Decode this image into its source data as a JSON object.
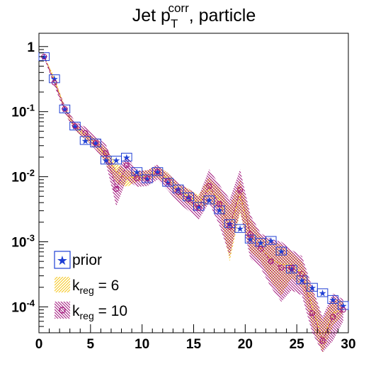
{
  "chart_data": {
    "type": "line",
    "title": {
      "main": "Jet p",
      "sub": "T",
      "sup": "corr",
      "rest": ", particle"
    },
    "xlabel": "",
    "ylabel": "",
    "xlim": [
      0,
      30
    ],
    "ylim": [
      4e-05,
      1.6
    ],
    "yscale": "log",
    "x_ticks": [
      "0",
      "5",
      "10",
      "15",
      "20",
      "25",
      "30"
    ],
    "y_ticks": [
      {
        "base": "1",
        "exp": ""
      },
      {
        "base": "10",
        "exp": "-1"
      },
      {
        "base": "10",
        "exp": "-2"
      },
      {
        "base": "10",
        "exp": "-3"
      },
      {
        "base": "10",
        "exp": "-4"
      }
    ],
    "legend_position": "bottom-left",
    "colors": {
      "prior": "#1f3fd4",
      "kreg6": "#f5c518",
      "kreg10": "#a0147a"
    },
    "x": [
      0.5,
      1.5,
      2.5,
      3.5,
      4.5,
      5.5,
      6.5,
      7.5,
      8.5,
      9.5,
      10.5,
      11.5,
      12.5,
      13.5,
      14.5,
      15.5,
      16.5,
      17.5,
      18.5,
      19.5,
      20.5,
      21.5,
      22.5,
      23.5,
      24.5,
      25.5,
      26.5,
      27.5,
      28.5,
      29.5
    ],
    "series": [
      {
        "name": "prior",
        "values": [
          0.7,
          0.32,
          0.11,
          0.06,
          0.036,
          0.033,
          0.018,
          0.018,
          0.02,
          0.012,
          0.0093,
          0.012,
          0.0082,
          0.0065,
          0.0049,
          0.0035,
          0.0044,
          0.0031,
          0.0019,
          0.0016,
          0.0011,
          0.00098,
          0.00105,
          0.00072,
          0.00038,
          0.00026,
          0.0002,
          0.000165,
          0.00013,
          0.000105
        ]
      },
      {
        "name": "k",
        "sub": "reg",
        "label_value": " = 6",
        "values": [
          0.7,
          0.31,
          0.11,
          0.058,
          0.043,
          0.033,
          0.021,
          0.012,
          0.0095,
          0.01,
          0.0105,
          0.012,
          0.0093,
          0.0061,
          0.005,
          0.004,
          0.0065,
          0.0045,
          0.0016,
          0.0052,
          0.0013,
          0.0008,
          0.00055,
          0.00045,
          0.00045,
          0.00033,
          0.0001,
          3e-05,
          8e-05,
          9.5e-05
        ],
        "band_low": [
          0.68,
          0.28,
          0.1,
          0.052,
          0.037,
          0.028,
          0.016,
          0.008,
          0.007,
          0.0084,
          0.0088,
          0.0098,
          0.0075,
          0.0048,
          0.0038,
          0.003,
          0.004,
          0.003,
          0.0005,
          0.0028,
          0.0007,
          0.0005,
          0.00025,
          0.00015,
          0.00028,
          0.0002,
          5e-05,
          2e-05,
          5e-05,
          8e-05
        ],
        "band_high": [
          0.72,
          0.34,
          0.12,
          0.064,
          0.05,
          0.038,
          0.027,
          0.016,
          0.0125,
          0.012,
          0.0125,
          0.0145,
          0.0115,
          0.0078,
          0.0065,
          0.0052,
          0.01,
          0.0065,
          0.0035,
          0.009,
          0.0023,
          0.0012,
          0.001,
          0.0009,
          0.0007,
          0.0005,
          0.00018,
          6e-05,
          0.00014,
          0.00012
        ]
      },
      {
        "name": "k",
        "sub": "reg",
        "label_value": " = 10",
        "values": [
          0.7,
          0.28,
          0.11,
          0.06,
          0.047,
          0.033,
          0.023,
          0.0065,
          0.015,
          0.0095,
          0.0095,
          0.012,
          0.0085,
          0.0058,
          0.0045,
          0.0033,
          0.0072,
          0.0038,
          0.0017,
          0.0063,
          0.0013,
          0.00078,
          0.0005,
          0.0004,
          0.0004,
          0.00032,
          8e-05,
          3e-05,
          7e-05,
          9e-05
        ],
        "band_low": [
          0.67,
          0.25,
          0.095,
          0.05,
          0.038,
          0.026,
          0.016,
          0.0035,
          0.009,
          0.007,
          0.0072,
          0.009,
          0.0062,
          0.004,
          0.003,
          0.0022,
          0.004,
          0.0018,
          0.0006,
          0.003,
          0.00055,
          0.0004,
          0.0002,
          0.00012,
          0.00018,
          0.00015,
          4e-05,
          2e-05,
          3e-05,
          6e-05
        ],
        "band_high": [
          0.73,
          0.31,
          0.125,
          0.07,
          0.058,
          0.042,
          0.031,
          0.012,
          0.021,
          0.0125,
          0.0125,
          0.0155,
          0.0112,
          0.008,
          0.0065,
          0.005,
          0.013,
          0.0075,
          0.0045,
          0.013,
          0.0026,
          0.00135,
          0.0011,
          0.001,
          0.00075,
          0.0006,
          0.0002,
          7e-05,
          0.00016,
          0.00013
        ]
      }
    ]
  }
}
